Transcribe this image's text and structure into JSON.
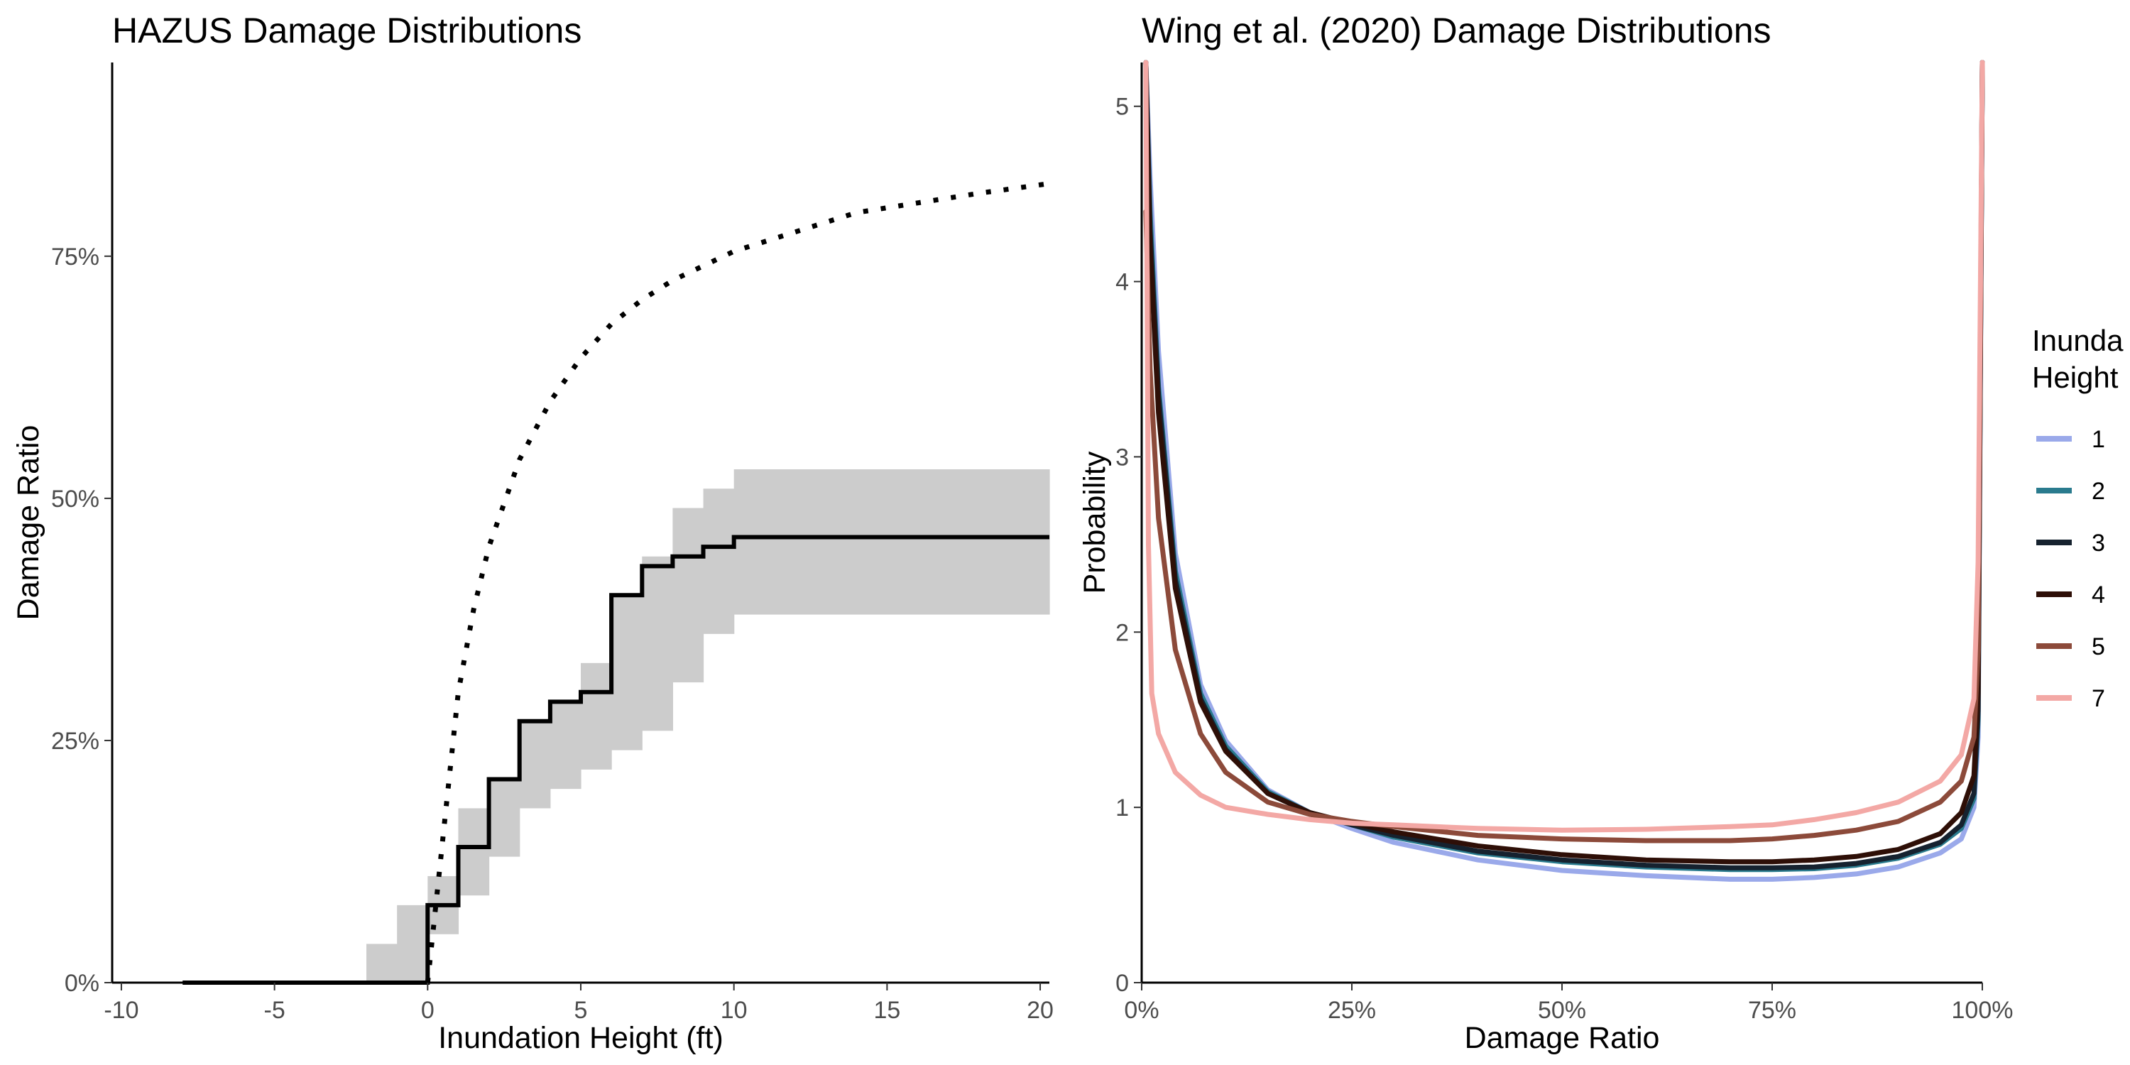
{
  "chart_data": [
    {
      "type": "line",
      "title": "HAZUS Damage Distributions",
      "xlabel": "Inundation Height (ft)",
      "ylabel": "Damage Ratio",
      "xlim": [
        -10.3,
        20.3
      ],
      "ylim": [
        0,
        0.95
      ],
      "x_ticks": [
        -10,
        -5,
        0,
        5,
        10,
        15,
        20
      ],
      "x_tick_labels": [
        "-10",
        "-5",
        "0",
        "5",
        "10",
        "15",
        "20"
      ],
      "y_ticks": [
        0,
        0.25,
        0.5,
        0.75
      ],
      "y_tick_labels": [
        "0%",
        "25%",
        "50%",
        "75%"
      ],
      "grid": false,
      "series": [
        {
          "style": "step-solid",
          "color": "#000000",
          "points": [
            [
              -8,
              0
            ],
            [
              0,
              0
            ],
            [
              0,
              0.08
            ],
            [
              1,
              0.08
            ],
            [
              1,
              0.14
            ],
            [
              2,
              0.14
            ],
            [
              2,
              0.21
            ],
            [
              3,
              0.21
            ],
            [
              3,
              0.27
            ],
            [
              4,
              0.27
            ],
            [
              4,
              0.29
            ],
            [
              5,
              0.29
            ],
            [
              5,
              0.3
            ],
            [
              6,
              0.3
            ],
            [
              6,
              0.4
            ],
            [
              7,
              0.4
            ],
            [
              7,
              0.43
            ],
            [
              8,
              0.43
            ],
            [
              8,
              0.44
            ],
            [
              9,
              0.44
            ],
            [
              9,
              0.45
            ],
            [
              10,
              0.45
            ],
            [
              10,
              0.46
            ],
            [
              20.3,
              0.46
            ]
          ]
        },
        {
          "style": "dotted",
          "color": "#000000",
          "points": [
            [
              0,
              0.0
            ],
            [
              0.3,
              0.09
            ],
            [
              0.6,
              0.18
            ],
            [
              1,
              0.3
            ],
            [
              1.5,
              0.385
            ],
            [
              2,
              0.45
            ],
            [
              3,
              0.54
            ],
            [
              4,
              0.6
            ],
            [
              5,
              0.645
            ],
            [
              6,
              0.68
            ],
            [
              7,
              0.705
            ],
            [
              8,
              0.725
            ],
            [
              9,
              0.74
            ],
            [
              10,
              0.755
            ],
            [
              12,
              0.775
            ],
            [
              14,
              0.795
            ],
            [
              16,
              0.805
            ],
            [
              18,
              0.815
            ],
            [
              20.3,
              0.825
            ]
          ]
        }
      ],
      "band": {
        "color": "#cccccc",
        "segments": [
          {
            "x0": -2,
            "x1": -1,
            "lo": 0.0,
            "hi": 0.04
          },
          {
            "x0": -1,
            "x1": 0,
            "lo": 0.0,
            "hi": 0.08
          },
          {
            "x0": 0,
            "x1": 1,
            "lo": 0.05,
            "hi": 0.11
          },
          {
            "x0": 1,
            "x1": 2,
            "lo": 0.09,
            "hi": 0.18
          },
          {
            "x0": 2,
            "x1": 3,
            "lo": 0.13,
            "hi": 0.21
          },
          {
            "x0": 3,
            "x1": 4,
            "lo": 0.18,
            "hi": 0.27
          },
          {
            "x0": 4,
            "x1": 5,
            "lo": 0.2,
            "hi": 0.29
          },
          {
            "x0": 5,
            "x1": 6,
            "lo": 0.22,
            "hi": 0.33
          },
          {
            "x0": 6,
            "x1": 7,
            "lo": 0.24,
            "hi": 0.4
          },
          {
            "x0": 7,
            "x1": 8,
            "lo": 0.26,
            "hi": 0.44
          },
          {
            "x0": 8,
            "x1": 9,
            "lo": 0.31,
            "hi": 0.49
          },
          {
            "x0": 9,
            "x1": 10,
            "lo": 0.36,
            "hi": 0.51
          },
          {
            "x0": 10,
            "x1": 20.3,
            "lo": 0.38,
            "hi": 0.53
          }
        ]
      }
    },
    {
      "type": "line",
      "title": "Wing et al. (2020) Damage Distributions",
      "xlabel": "Damage Ratio",
      "ylabel": "Probability",
      "xlim": [
        0,
        1
      ],
      "ylim": [
        0,
        5.25
      ],
      "x_ticks": [
        0,
        0.25,
        0.5,
        0.75,
        1
      ],
      "x_tick_labels": [
        "0%",
        "25%",
        "50%",
        "75%",
        "100%"
      ],
      "y_ticks": [
        0,
        1,
        2,
        3,
        4,
        5
      ],
      "y_tick_labels": [
        "0",
        "1",
        "2",
        "3",
        "4",
        "5"
      ],
      "grid": false,
      "legend": {
        "title_lines": [
          "Inunda",
          "Height"
        ],
        "position": "right"
      },
      "series": [
        {
          "name": "1",
          "color": "#9aa9ea",
          "points": [
            [
              0.005,
              5.25
            ],
            [
              0.01,
              4.6
            ],
            [
              0.02,
              3.6
            ],
            [
              0.04,
              2.45
            ],
            [
              0.07,
              1.7
            ],
            [
              0.1,
              1.38
            ],
            [
              0.15,
              1.1
            ],
            [
              0.2,
              0.97
            ],
            [
              0.25,
              0.88
            ],
            [
              0.3,
              0.8
            ],
            [
              0.4,
              0.7
            ],
            [
              0.5,
              0.64
            ],
            [
              0.6,
              0.61
            ],
            [
              0.7,
              0.59
            ],
            [
              0.75,
              0.59
            ],
            [
              0.8,
              0.6
            ],
            [
              0.85,
              0.62
            ],
            [
              0.9,
              0.66
            ],
            [
              0.95,
              0.74
            ],
            [
              0.975,
              0.82
            ],
            [
              0.99,
              1.0
            ],
            [
              0.995,
              1.4
            ],
            [
              1.0,
              5.25
            ]
          ]
        },
        {
          "name": "2",
          "color": "#2a7b8e",
          "points": [
            [
              0.005,
              5.25
            ],
            [
              0.01,
              4.4
            ],
            [
              0.02,
              3.4
            ],
            [
              0.04,
              2.35
            ],
            [
              0.07,
              1.65
            ],
            [
              0.1,
              1.35
            ],
            [
              0.15,
              1.09
            ],
            [
              0.2,
              0.97
            ],
            [
              0.25,
              0.9
            ],
            [
              0.3,
              0.83
            ],
            [
              0.4,
              0.74
            ],
            [
              0.5,
              0.69
            ],
            [
              0.6,
              0.66
            ],
            [
              0.7,
              0.645
            ],
            [
              0.75,
              0.645
            ],
            [
              0.8,
              0.65
            ],
            [
              0.85,
              0.67
            ],
            [
              0.9,
              0.71
            ],
            [
              0.95,
              0.79
            ],
            [
              0.975,
              0.88
            ],
            [
              0.99,
              1.05
            ],
            [
              0.995,
              1.5
            ],
            [
              1.0,
              5.25
            ]
          ]
        },
        {
          "name": "3",
          "color": "#16222f",
          "points": [
            [
              0.005,
              5.25
            ],
            [
              0.01,
              4.3
            ],
            [
              0.02,
              3.35
            ],
            [
              0.04,
              2.3
            ],
            [
              0.07,
              1.62
            ],
            [
              0.1,
              1.33
            ],
            [
              0.15,
              1.08
            ],
            [
              0.2,
              0.97
            ],
            [
              0.25,
              0.9
            ],
            [
              0.3,
              0.84
            ],
            [
              0.4,
              0.75
            ],
            [
              0.5,
              0.7
            ],
            [
              0.6,
              0.67
            ],
            [
              0.7,
              0.655
            ],
            [
              0.75,
              0.655
            ],
            [
              0.8,
              0.66
            ],
            [
              0.85,
              0.68
            ],
            [
              0.9,
              0.72
            ],
            [
              0.95,
              0.8
            ],
            [
              0.975,
              0.9
            ],
            [
              0.99,
              1.08
            ],
            [
              0.995,
              1.55
            ],
            [
              1.0,
              5.25
            ]
          ]
        },
        {
          "name": "4",
          "color": "#2e0f07",
          "points": [
            [
              0.005,
              5.25
            ],
            [
              0.01,
              4.2
            ],
            [
              0.02,
              3.25
            ],
            [
              0.04,
              2.25
            ],
            [
              0.07,
              1.6
            ],
            [
              0.1,
              1.32
            ],
            [
              0.15,
              1.08
            ],
            [
              0.2,
              0.97
            ],
            [
              0.25,
              0.91
            ],
            [
              0.3,
              0.86
            ],
            [
              0.4,
              0.78
            ],
            [
              0.5,
              0.73
            ],
            [
              0.6,
              0.7
            ],
            [
              0.7,
              0.69
            ],
            [
              0.75,
              0.69
            ],
            [
              0.8,
              0.7
            ],
            [
              0.85,
              0.72
            ],
            [
              0.9,
              0.76
            ],
            [
              0.95,
              0.85
            ],
            [
              0.975,
              0.97
            ],
            [
              0.99,
              1.18
            ],
            [
              0.995,
              1.65
            ],
            [
              1.0,
              5.25
            ]
          ]
        },
        {
          "name": "5",
          "color": "#8c4a3a",
          "points": [
            [
              0.005,
              4.4
            ],
            [
              0.01,
              3.5
            ],
            [
              0.02,
              2.65
            ],
            [
              0.04,
              1.9
            ],
            [
              0.07,
              1.42
            ],
            [
              0.1,
              1.2
            ],
            [
              0.15,
              1.03
            ],
            [
              0.2,
              0.96
            ],
            [
              0.25,
              0.92
            ],
            [
              0.3,
              0.89
            ],
            [
              0.4,
              0.84
            ],
            [
              0.5,
              0.82
            ],
            [
              0.6,
              0.81
            ],
            [
              0.7,
              0.81
            ],
            [
              0.75,
              0.82
            ],
            [
              0.8,
              0.84
            ],
            [
              0.85,
              0.87
            ],
            [
              0.9,
              0.92
            ],
            [
              0.95,
              1.03
            ],
            [
              0.975,
              1.15
            ],
            [
              0.99,
              1.4
            ],
            [
              0.995,
              1.9
            ],
            [
              1.0,
              5.25
            ]
          ]
        },
        {
          "name": "7",
          "color": "#f3a8a5",
          "points": [
            [
              0.005,
              5.25
            ],
            [
              0.008,
              2.5
            ],
            [
              0.012,
              1.65
            ],
            [
              0.02,
              1.42
            ],
            [
              0.04,
              1.2
            ],
            [
              0.07,
              1.07
            ],
            [
              0.1,
              1.0
            ],
            [
              0.15,
              0.96
            ],
            [
              0.2,
              0.93
            ],
            [
              0.25,
              0.91
            ],
            [
              0.3,
              0.9
            ],
            [
              0.4,
              0.88
            ],
            [
              0.5,
              0.87
            ],
            [
              0.6,
              0.875
            ],
            [
              0.7,
              0.89
            ],
            [
              0.75,
              0.9
            ],
            [
              0.8,
              0.93
            ],
            [
              0.85,
              0.97
            ],
            [
              0.9,
              1.03
            ],
            [
              0.95,
              1.15
            ],
            [
              0.975,
              1.3
            ],
            [
              0.99,
              1.62
            ],
            [
              0.995,
              2.4
            ],
            [
              1.0,
              5.25
            ]
          ]
        }
      ]
    }
  ]
}
